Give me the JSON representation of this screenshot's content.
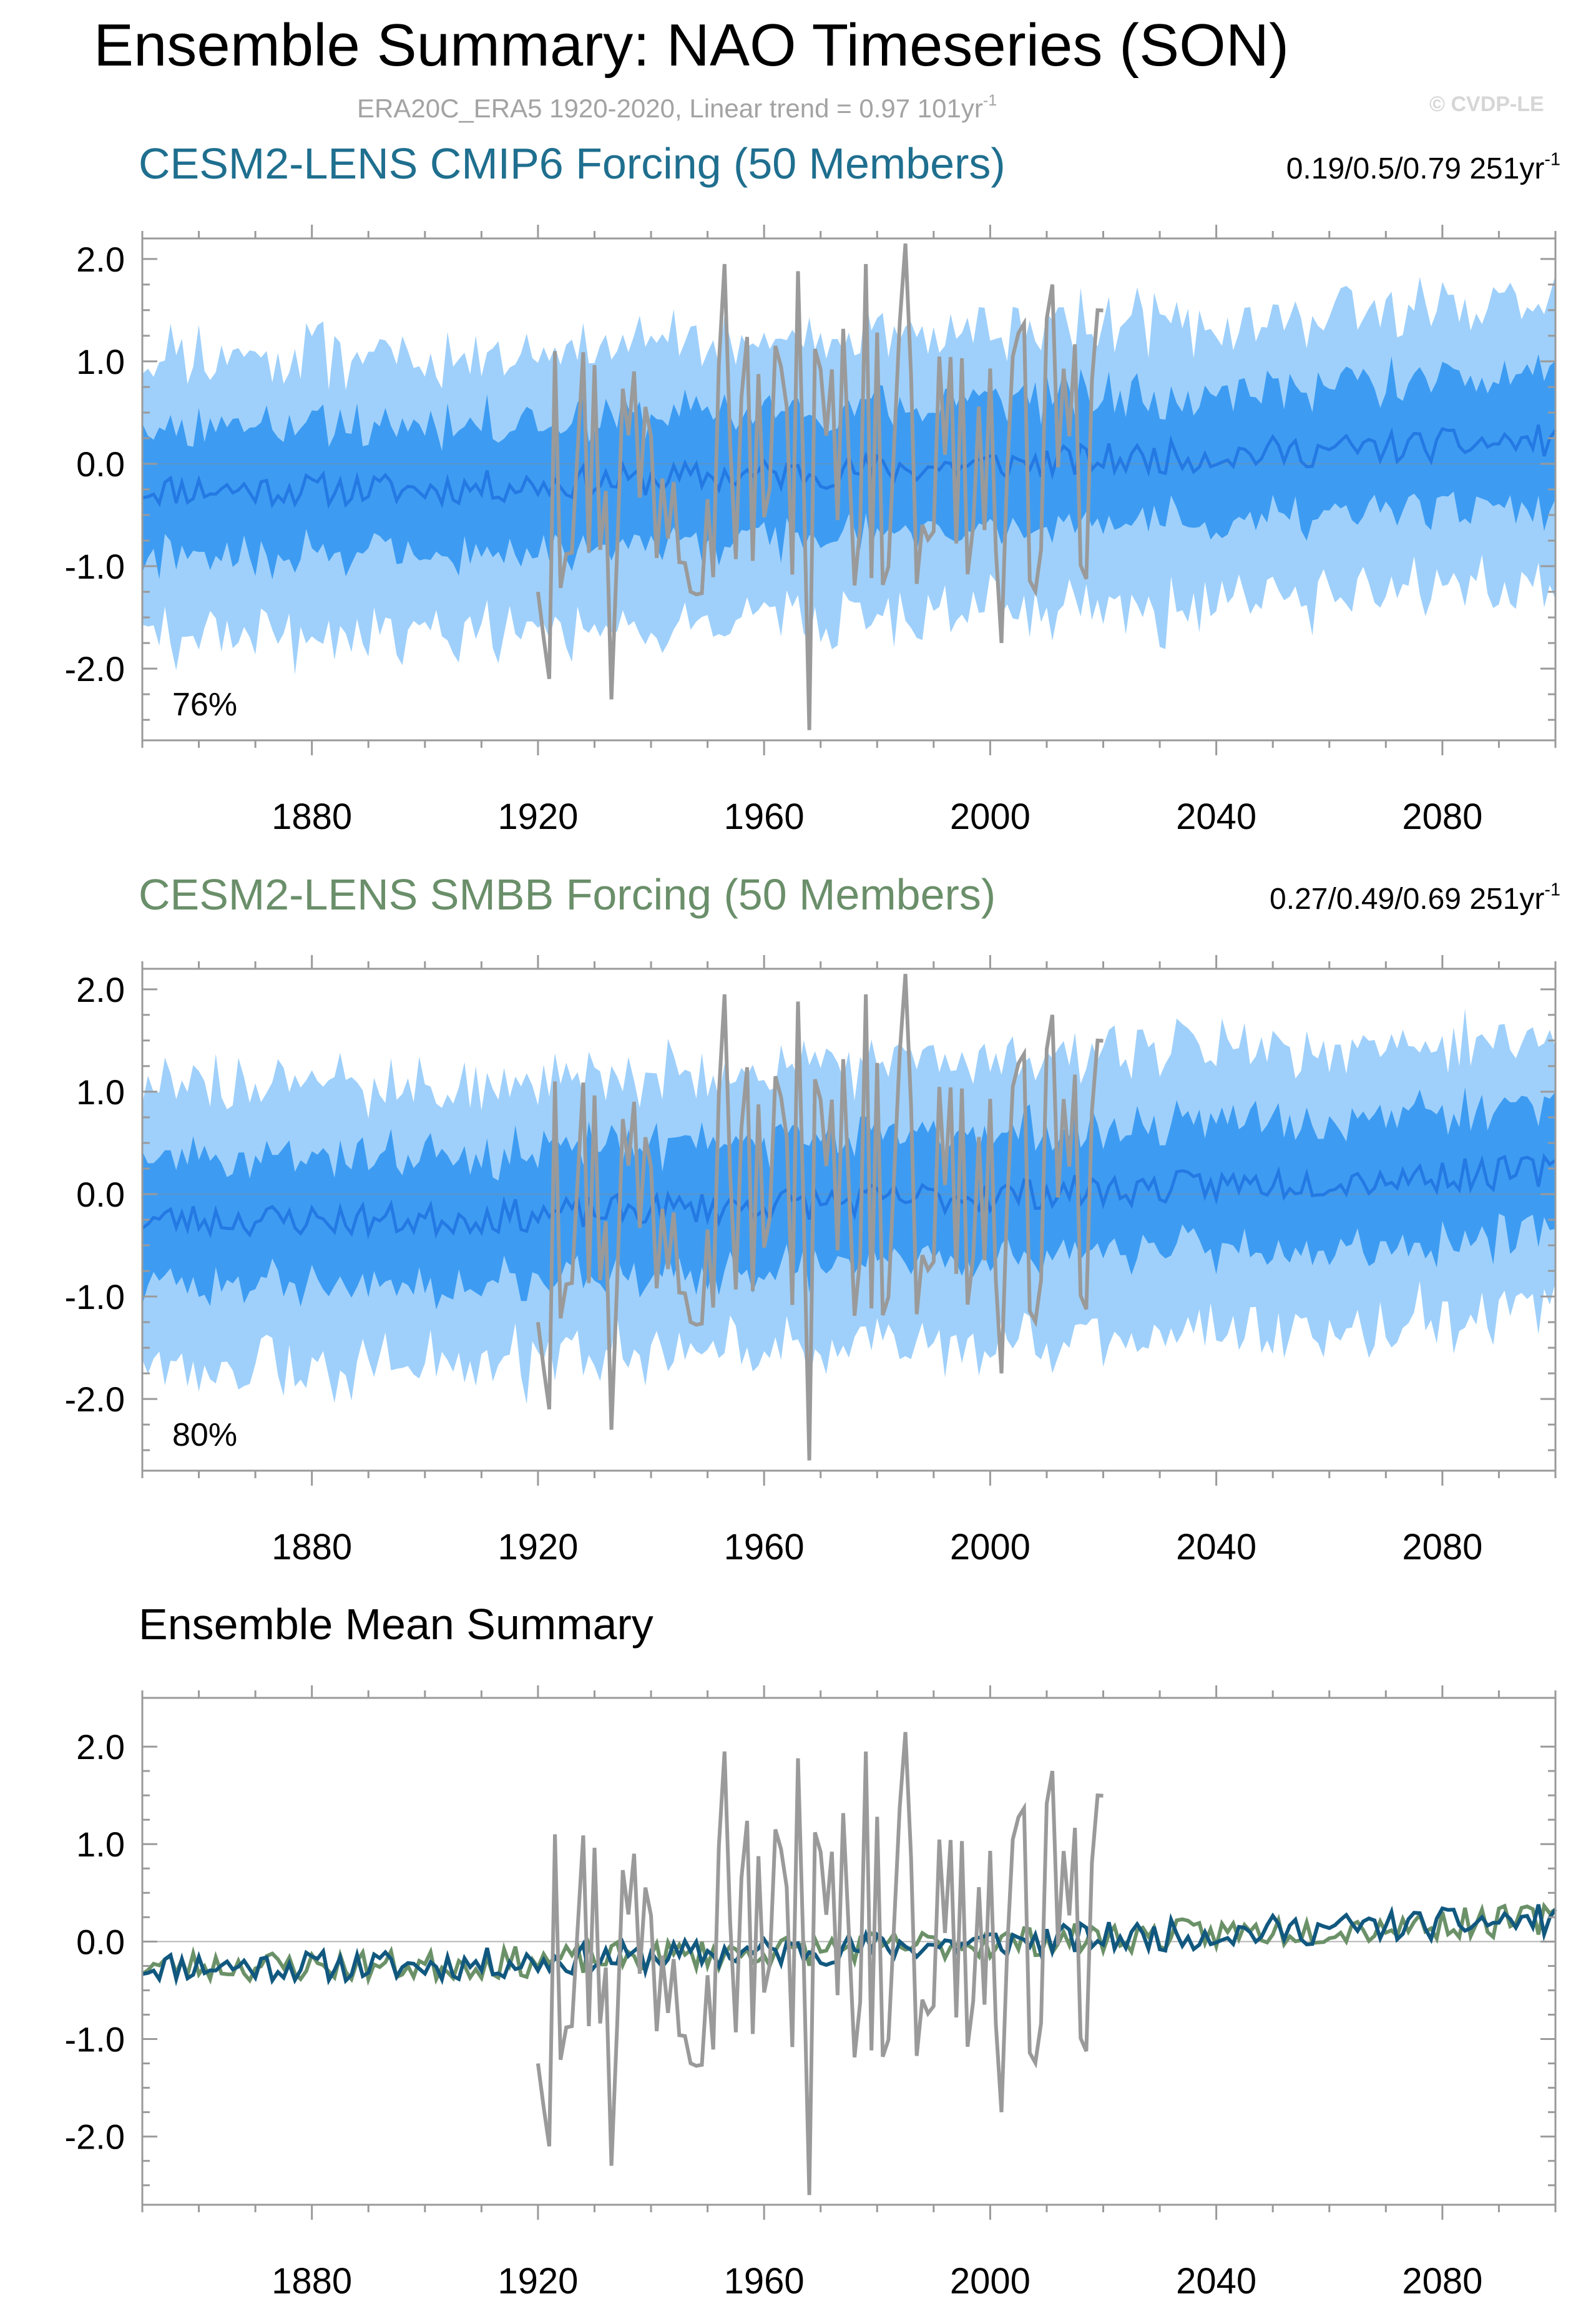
{
  "title": "Ensemble Summary: NAO Timeseries (SON)",
  "subtitle": {
    "text": "ERA20C_ERA5 1920-2020, Linear trend = 0.97 101yr",
    "superscript": "-1"
  },
  "watermark": "© CVDP-LE",
  "colors": {
    "obs": "#9a9a9a",
    "band_outer": "#9fd0fb",
    "band_inner": "#3d9cf2",
    "ens_mean_line": "#2479e3",
    "cmip6_title": "#1f6f8f",
    "smbb_title": "#6a8f6a",
    "cmip6_mean_line": "#11587f",
    "smbb_mean_line": "#6b9168"
  },
  "panels": [
    {
      "title": "CESM2-LENS CMIP6 Forcing (50 Members)",
      "stats": "0.19/0.5/0.79 251yr",
      "stats_superscript": "-1",
      "percent_label": "76%"
    },
    {
      "title": "CESM2-LENS SMBB Forcing (50 Members)",
      "stats": "0.27/0.49/0.69 251yr",
      "stats_superscript": "-1",
      "percent_label": "80%"
    },
    {
      "title": "Ensemble Mean Summary"
    }
  ],
  "chart_data": [
    {
      "type": "area",
      "title": "CESM2-LENS CMIP6 Forcing (50 Members)",
      "xlim": [
        1850,
        2100
      ],
      "ylim": [
        -2.7,
        2.2
      ],
      "x_ticks": [
        1880,
        1920,
        1960,
        2000,
        2040,
        2080
      ],
      "y_ticks": [
        2.0,
        1.0,
        0.0,
        -1.0,
        -2.0
      ],
      "y_tick_labels": [
        "2.0",
        "1.0",
        "0.0",
        "-1.0",
        "-2.0"
      ],
      "x_range_years": [
        1850,
        2100
      ],
      "series": [
        {
          "name": "ensemble 10-90% range",
          "role": "outer-band"
        },
        {
          "name": "ensemble 25-75% range",
          "role": "inner-band"
        },
        {
          "name": "ensemble mean",
          "role": "line"
        },
        {
          "name": "ERA20C_ERA5",
          "role": "line",
          "x_range": [
            1920,
            2020
          ]
        }
      ]
    },
    {
      "type": "area",
      "title": "CESM2-LENS SMBB Forcing (50 Members)",
      "xlim": [
        1850,
        2100
      ],
      "ylim": [
        -2.7,
        2.2
      ],
      "x_ticks": [
        1880,
        1920,
        1960,
        2000,
        2040,
        2080
      ],
      "y_ticks": [
        2.0,
        1.0,
        0.0,
        -1.0,
        -2.0
      ],
      "y_tick_labels": [
        "2.0",
        "1.0",
        "0.0",
        "-1.0",
        "-2.0"
      ],
      "series": [
        {
          "name": "ensemble 10-90% range",
          "role": "outer-band"
        },
        {
          "name": "ensemble 25-75% range",
          "role": "inner-band"
        },
        {
          "name": "ensemble mean",
          "role": "line"
        },
        {
          "name": "ERA20C_ERA5",
          "role": "line",
          "x_range": [
            1920,
            2020
          ]
        }
      ]
    },
    {
      "type": "line",
      "title": "Ensemble Mean Summary",
      "xlim": [
        1850,
        2100
      ],
      "ylim": [
        -2.7,
        2.5
      ],
      "x_ticks": [
        1880,
        1920,
        1960,
        2000,
        2040,
        2080
      ],
      "y_ticks": [
        2.0,
        1.0,
        0.0,
        -1.0,
        -2.0
      ],
      "y_tick_labels": [
        "2.0",
        "1.0",
        "0.0",
        "-1.0",
        "-2.0"
      ],
      "series": [
        {
          "name": "ERA20C_ERA5"
        },
        {
          "name": "CESM2-LENS CMIP6 Forcing"
        },
        {
          "name": "CESM2-LENS SMBB Forcing"
        }
      ]
    }
  ]
}
